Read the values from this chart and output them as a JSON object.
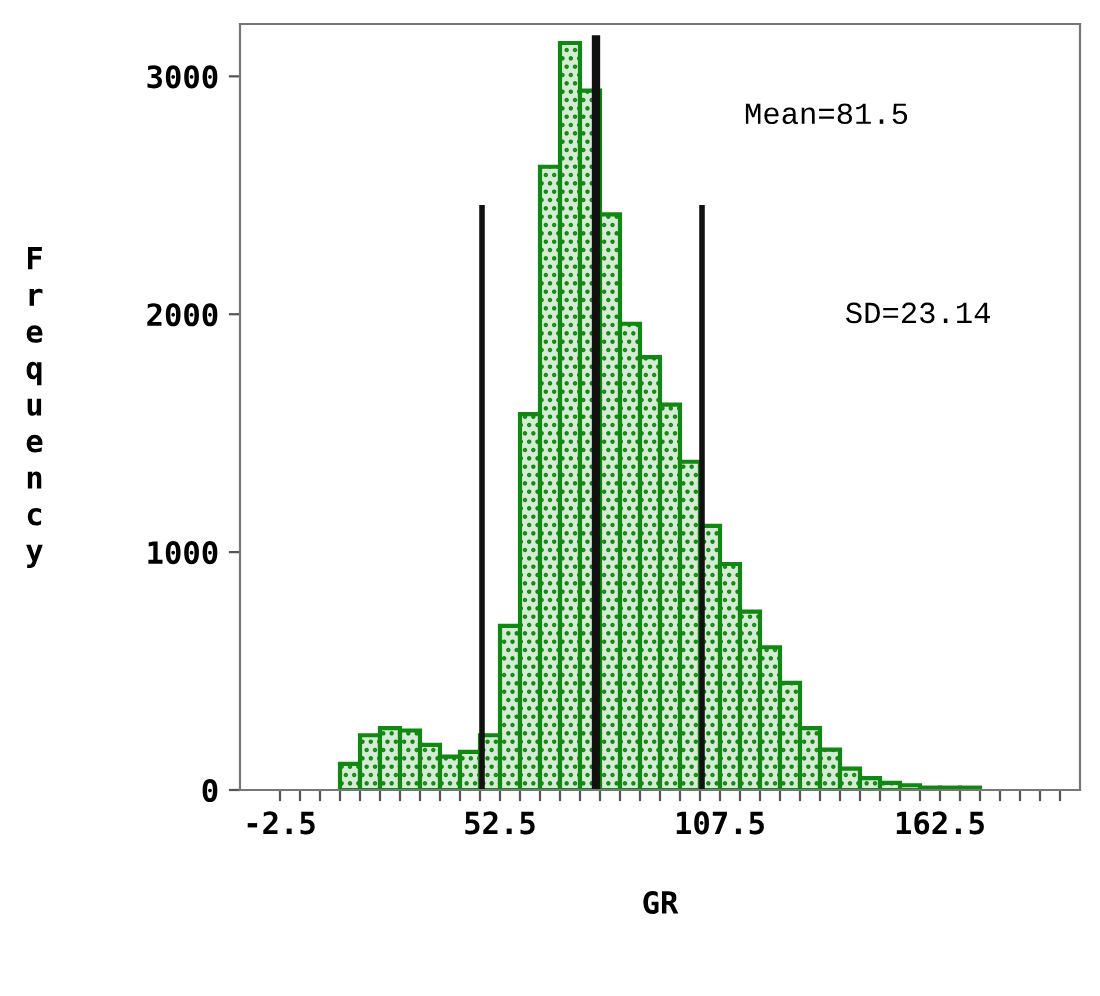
{
  "chart_data": {
    "type": "histogram",
    "xlabel": "GR",
    "ylabel": "Frequency",
    "color": "#118811",
    "bins": [
      12.5,
      17.5,
      22.5,
      27.5,
      32.5,
      37.5,
      42.5,
      47.5,
      52.5,
      57.5,
      62.5,
      67.5,
      72.5,
      77.5,
      82.5,
      87.5,
      92.5,
      97.5,
      102.5,
      107.5,
      112.5,
      117.5,
      122.5,
      127.5,
      132.5,
      137.5,
      142.5,
      147.5,
      152.5,
      157.5,
      162.5,
      167.5,
      172.5
    ],
    "values": [
      110,
      230,
      260,
      250,
      190,
      140,
      160,
      230,
      690,
      1580,
      2620,
      3140,
      2940,
      2420,
      1960,
      1820,
      1620,
      1380,
      1110,
      950,
      750,
      600,
      450,
      260,
      170,
      90,
      50,
      30,
      20,
      10,
      10,
      10
    ],
    "xlim": [
      -12.5,
      197.5
    ],
    "ylim": [
      0,
      3220
    ],
    "xticks": [
      {
        "value": -2.5,
        "label": "-2.5"
      },
      {
        "value": 2.5,
        "label": null
      },
      {
        "value": 7.5,
        "label": null
      },
      {
        "value": 12.5,
        "label": null
      },
      {
        "value": 17.5,
        "label": null
      },
      {
        "value": 22.5,
        "label": null
      },
      {
        "value": 27.5,
        "label": null
      },
      {
        "value": 32.5,
        "label": null
      },
      {
        "value": 37.5,
        "label": null
      },
      {
        "value": 42.5,
        "label": null
      },
      {
        "value": 47.5,
        "label": null
      },
      52.5,
      {
        "value": 57.5,
        "label": null
      },
      {
        "value": 62.5,
        "label": null
      },
      {
        "value": 67.5,
        "label": null
      },
      {
        "value": 72.5,
        "label": null
      },
      {
        "value": 77.5,
        "label": null
      },
      {
        "value": 82.5,
        "label": null
      },
      {
        "value": 87.5,
        "label": null
      },
      {
        "value": 92.5,
        "label": null
      },
      {
        "value": 97.5,
        "label": null
      },
      {
        "value": 102.5,
        "label": null
      },
      107.5,
      {
        "value": 112.5,
        "label": null
      },
      {
        "value": 117.5,
        "label": null
      },
      {
        "value": 122.5,
        "label": null
      },
      {
        "value": 127.5,
        "label": null
      },
      {
        "value": 132.5,
        "label": null
      },
      {
        "value": 137.5,
        "label": null
      },
      {
        "value": 142.5,
        "label": null
      },
      {
        "value": 147.5,
        "label": null
      },
      {
        "value": 152.5,
        "label": null
      },
      {
        "value": 157.5,
        "label": null
      },
      162.5,
      {
        "value": 167.5,
        "label": null
      },
      {
        "value": 172.5,
        "label": null
      },
      {
        "value": 177.5,
        "label": null
      },
      {
        "value": 182.5,
        "label": null
      },
      {
        "value": 187.5,
        "label": null
      },
      {
        "value": 192.5,
        "label": null
      }
    ],
    "yticks": [
      0,
      1000,
      2000,
      3000
    ],
    "ref_lines": [
      {
        "axis": "x",
        "value": 48,
        "label": null,
        "color": "#111111"
      },
      {
        "axis": "x",
        "value": 76.5,
        "label": null,
        "color": "#111111"
      },
      {
        "axis": "x",
        "value": 103,
        "label": null,
        "color": "#111111"
      }
    ],
    "annotations": [
      "Mean=81.5",
      "SD=23.14"
    ],
    "grid": false,
    "legend": false
  }
}
